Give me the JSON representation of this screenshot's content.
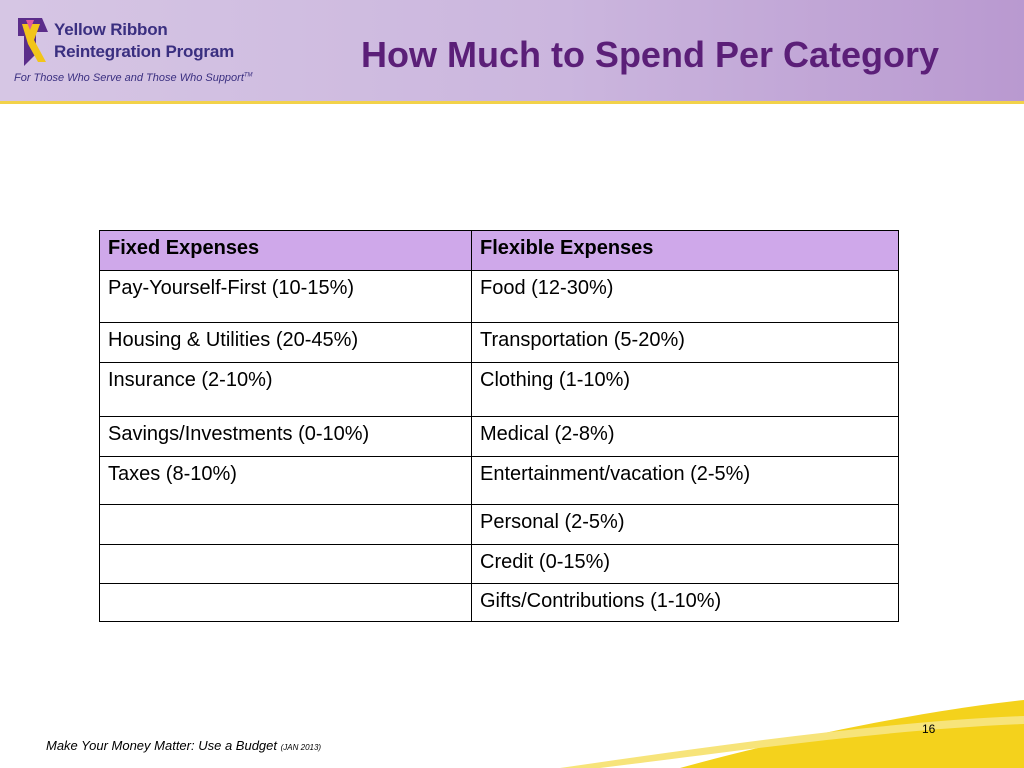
{
  "header": {
    "logo": {
      "line1": "Yellow Ribbon",
      "line2": "Reintegration Program",
      "tagline": "For Those Who Serve and Those Who Support",
      "tagline_mark": "TM"
    },
    "title": "How Much to Spend Per Category"
  },
  "table": {
    "headers": [
      "Fixed Expenses",
      "Flexible Expenses"
    ],
    "rows": [
      [
        "Pay-Yourself-First (10-15%)",
        "Food (12-30%)"
      ],
      [
        "Housing & Utilities (20-45%)",
        "Transportation (5-20%)"
      ],
      [
        "Insurance (2-10%)",
        "Clothing (1-10%)"
      ],
      [
        "Savings/Investments (0-10%)",
        "Medical (2-8%)"
      ],
      [
        "Taxes (8-10%)",
        "Entertainment/vacation (2-5%)"
      ],
      [
        "",
        "Personal (2-5%)"
      ],
      [
        "",
        "Credit (0-15%)"
      ],
      [
        "",
        "Gifts/Contributions (1-10%)"
      ]
    ]
  },
  "footer": {
    "text": "Make Your Money Matter:  Use a Budget",
    "date": "(JAN 2013)",
    "page_number": "16"
  },
  "colors": {
    "title": "#5b1f78",
    "header_row": "#cfa8ea",
    "accent_yellow": "#f2d24a",
    "logo_text": "#3a2f80"
  }
}
